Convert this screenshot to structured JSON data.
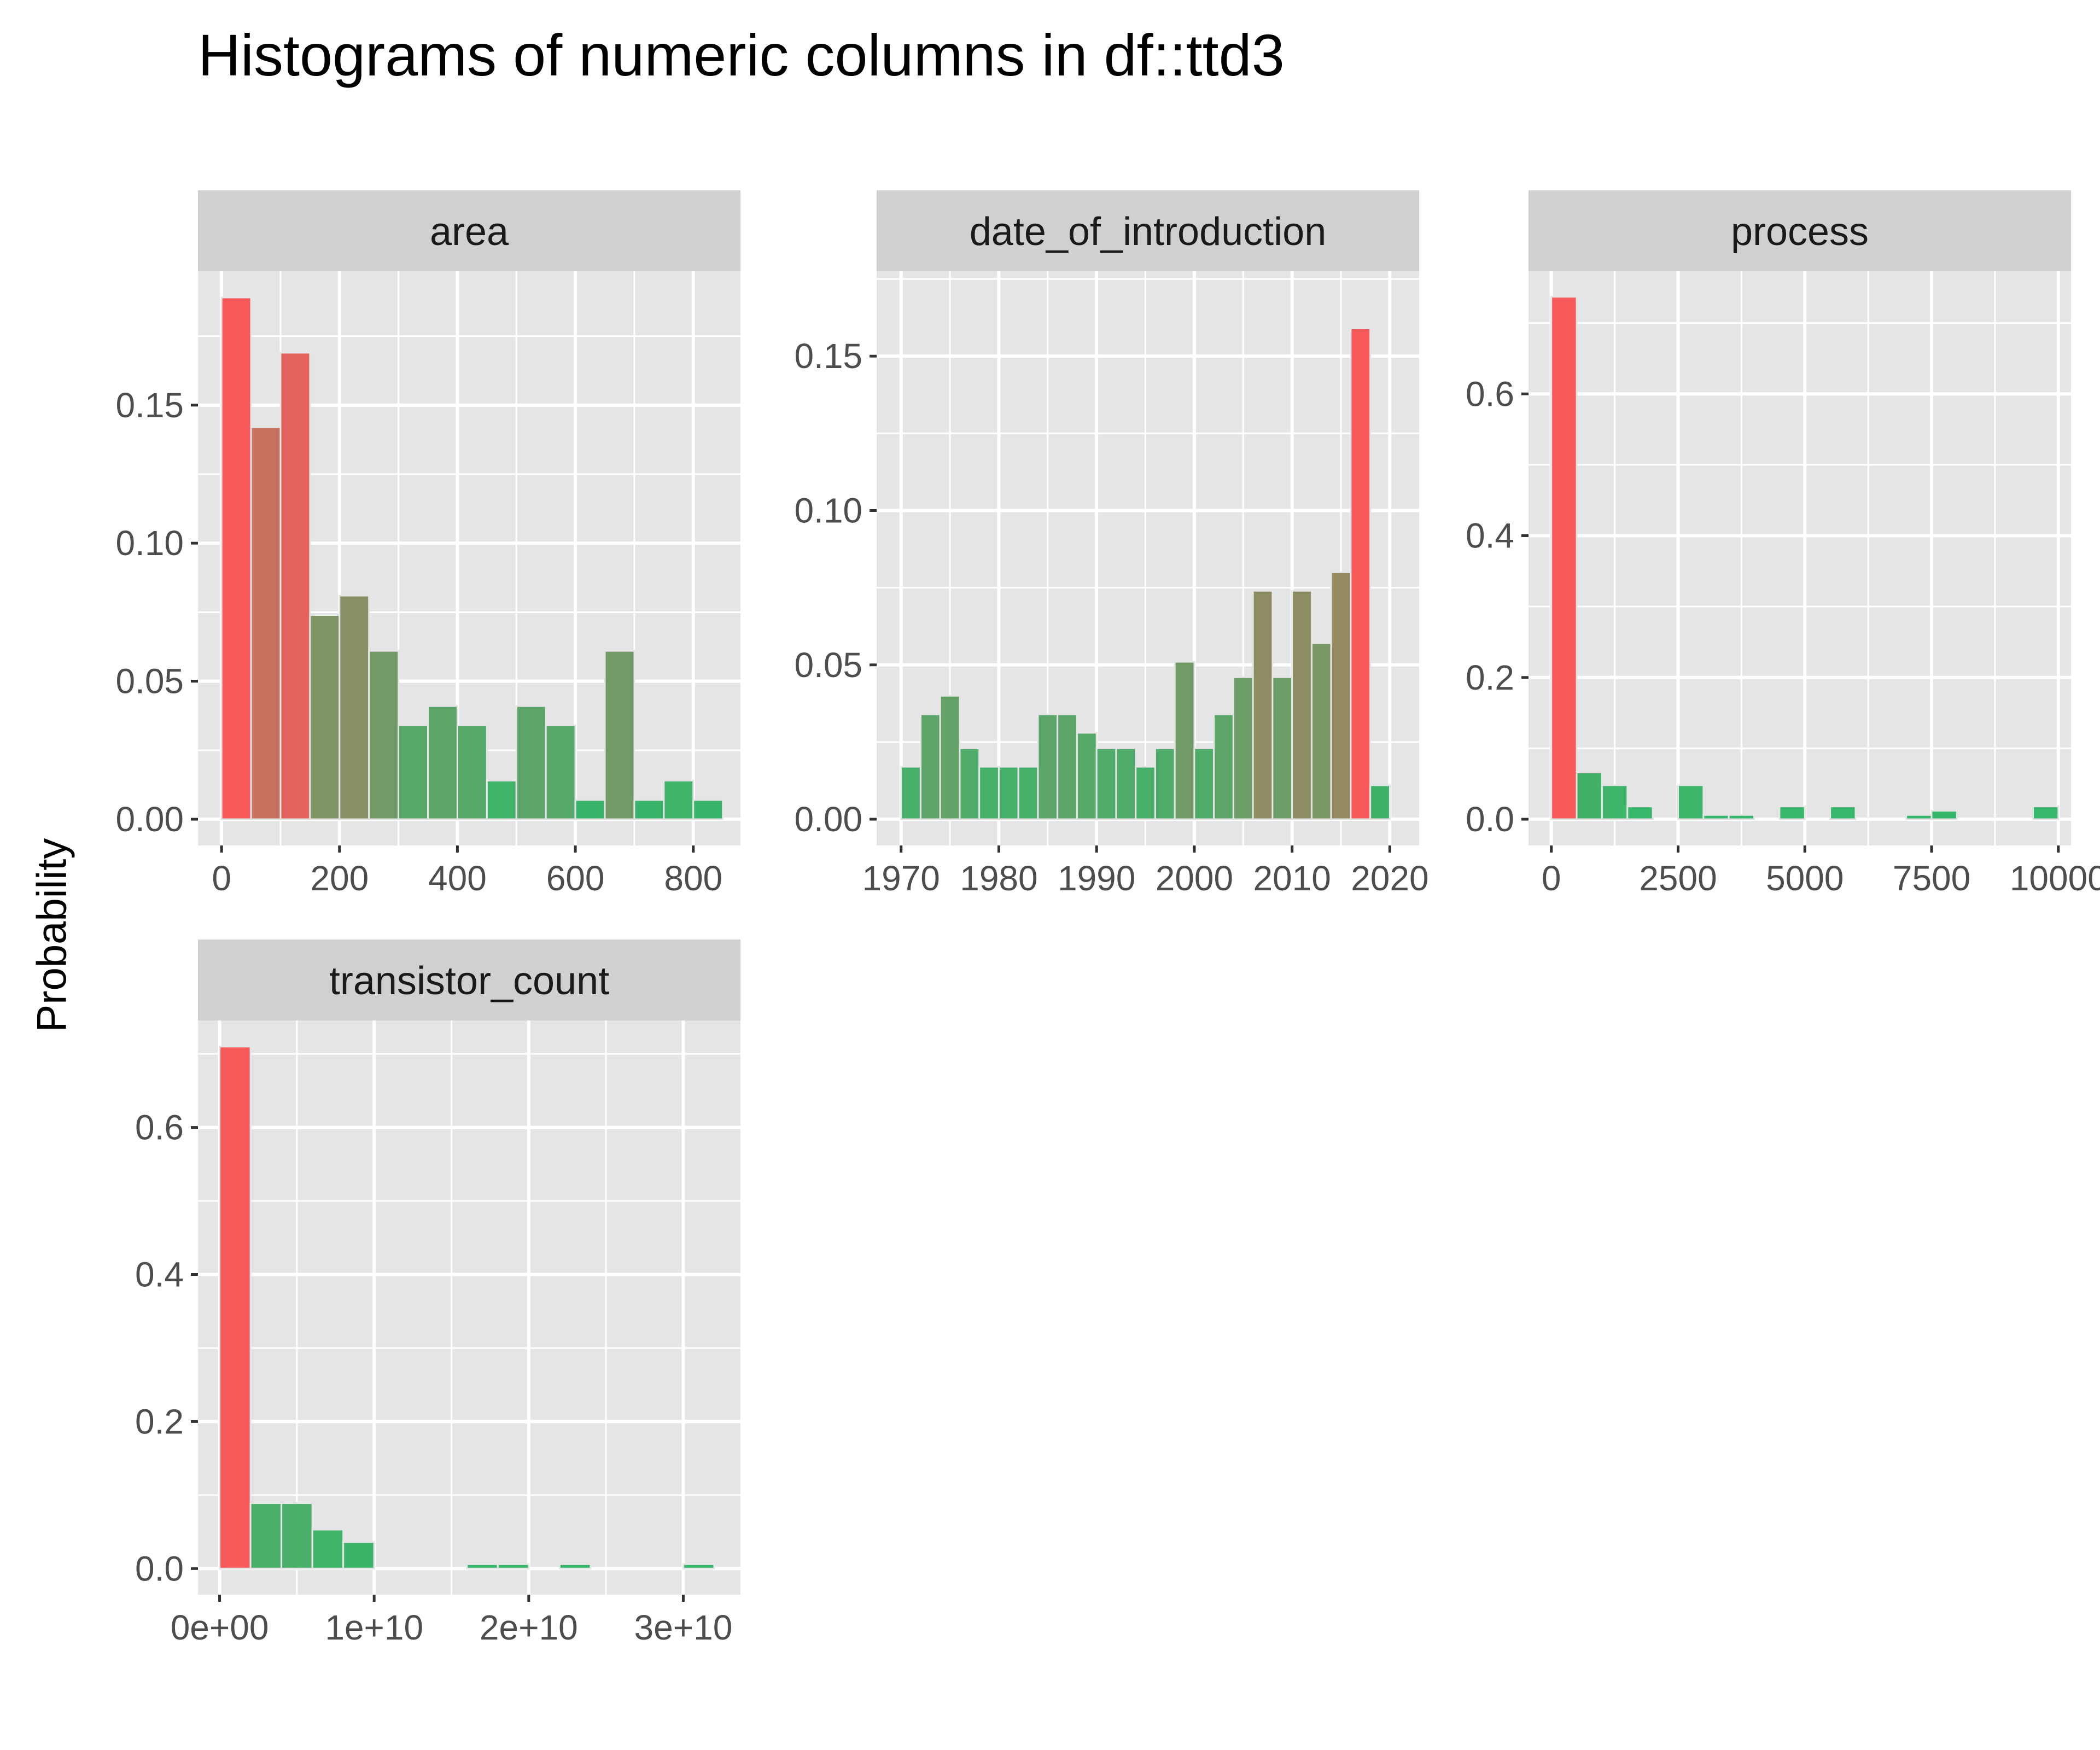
{
  "title": "Histograms of numeric columns in df::ttd3",
  "ylabel": "Probability",
  "colors": {
    "panel_bg": "#e5e5e5",
    "strip_bg": "#d0d0d0",
    "grid": "#ffffff",
    "axis_text": "#4d4d4d",
    "high": "#f8595a",
    "low": "#31b96b"
  },
  "chart_data": [
    {
      "type": "bar",
      "panel": "area",
      "xlim": [
        -40,
        880
      ],
      "ylim": [
        -0.0095,
        0.1985
      ],
      "x_breaks": [
        0,
        200,
        400,
        600,
        800
      ],
      "x_tick_labels": [
        "0",
        "200",
        "400",
        "600",
        "800"
      ],
      "y_breaks": [
        0,
        0.05,
        0.1,
        0.15
      ],
      "y_tick_labels": [
        "0.00",
        "0.05",
        "0.10",
        "0.15"
      ],
      "binwidth": 50,
      "bin_centers": [
        25,
        75,
        125,
        175,
        225,
        275,
        325,
        375,
        425,
        475,
        525,
        575,
        625,
        675,
        725,
        775,
        825
      ],
      "values": [
        0.189,
        0.142,
        0.169,
        0.074,
        0.081,
        0.061,
        0.034,
        0.041,
        0.034,
        0.014,
        0.041,
        0.034,
        0.007,
        0.061,
        0.007,
        0.014,
        0.007
      ]
    },
    {
      "type": "bar",
      "panel": "date_of_introduction",
      "xlim": [
        1967.5,
        2023.0
      ],
      "ylim": [
        -0.0085,
        0.1775
      ],
      "x_breaks": [
        1970,
        1980,
        1990,
        2000,
        2010,
        2020
      ],
      "x_tick_labels": [
        "1970",
        "1980",
        "1990",
        "2000",
        "2010",
        "2020"
      ],
      "y_breaks": [
        0,
        0.05,
        0.1,
        0.15
      ],
      "y_tick_labels": [
        "0.00",
        "0.05",
        "0.10",
        "0.15"
      ],
      "binwidth": 2,
      "bin_centers": [
        1971,
        1973,
        1975,
        1977,
        1979,
        1981,
        1983,
        1985,
        1987,
        1989,
        1991,
        1993,
        1995,
        1997,
        1999,
        2001,
        2003,
        2005,
        2007,
        2009,
        2011,
        2013,
        2015,
        2017,
        2019
      ],
      "values": [
        0.017,
        0.034,
        0.04,
        0.023,
        0.017,
        0.017,
        0.017,
        0.034,
        0.034,
        0.028,
        0.023,
        0.023,
        0.017,
        0.023,
        0.051,
        0.023,
        0.034,
        0.046,
        0.074,
        0.046,
        0.074,
        0.057,
        0.08,
        0.159,
        0.011
      ]
    },
    {
      "type": "bar",
      "panel": "process",
      "xlim": [
        -450,
        10250
      ],
      "ylim": [
        -0.037,
        0.773
      ],
      "x_breaks": [
        0,
        2500,
        5000,
        7500,
        10000
      ],
      "x_tick_labels": [
        "0",
        "2500",
        "5000",
        "7500",
        "10000"
      ],
      "y_breaks": [
        0,
        0.2,
        0.4,
        0.6
      ],
      "y_tick_labels": [
        "0.0",
        "0.2",
        "0.4",
        "0.6"
      ],
      "binwidth": 500,
      "bin_centers": [
        250,
        750,
        1250,
        1750,
        2250,
        2750,
        3250,
        3750,
        4250,
        4750,
        5250,
        5750,
        6250,
        6750,
        7250,
        7750,
        8250,
        8750,
        9250,
        9750
      ],
      "values": [
        0.737,
        0.066,
        0.048,
        0.018,
        0,
        0.048,
        0.006,
        0.006,
        0,
        0.018,
        0,
        0.018,
        0,
        0,
        0.006,
        0.012,
        0,
        0,
        0,
        0.018
      ]
    },
    {
      "type": "bar",
      "panel": "transistor_count",
      "xlim": [
        -1400000000.0,
        33700000000.0
      ],
      "ylim": [
        -0.0355,
        0.7455
      ],
      "x_breaks": [
        0,
        10000000000.0,
        20000000000.0,
        30000000000.0
      ],
      "x_tick_labels": [
        "0e+00",
        "1e+10",
        "2e+10",
        "3e+10"
      ],
      "y_breaks": [
        0,
        0.2,
        0.4,
        0.6
      ],
      "y_tick_labels": [
        "0.0",
        "0.2",
        "0.4",
        "0.6"
      ],
      "binwidth": 2000000000.0,
      "bin_centers": [
        1000000000.0,
        3000000000.0,
        5000000000.0,
        7000000000.0,
        9000000000.0,
        11000000000.0,
        13000000000.0,
        15000000000.0,
        17000000000.0,
        19000000000.0,
        21000000000.0,
        23000000000.0,
        25000000000.0,
        27000000000.0,
        29000000000.0,
        31000000000.0
      ],
      "values": [
        0.71,
        0.089,
        0.089,
        0.053,
        0.036,
        0,
        0,
        0,
        0.006,
        0.006,
        0,
        0.006,
        0,
        0,
        0,
        0.006
      ]
    }
  ]
}
